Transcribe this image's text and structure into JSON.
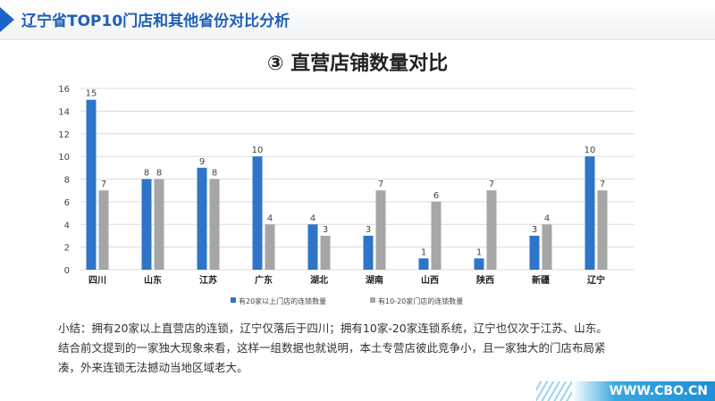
{
  "header": {
    "title": "辽宁省TOP10门店和其他省份对比分析"
  },
  "subtitle": "③ 直营店铺数量对比",
  "chart_data": {
    "type": "bar",
    "categories": [
      "四川",
      "山东",
      "江苏",
      "广东",
      "湖北",
      "湖南",
      "山西",
      "陕西",
      "新疆",
      "辽宁"
    ],
    "series": [
      {
        "name": "有20家以上门店的连锁数量",
        "values": [
          15,
          8,
          9,
          10,
          4,
          3,
          1,
          1,
          3,
          10
        ],
        "color": "#2e75c8"
      },
      {
        "name": "有10-20家门店的连锁数量",
        "values": [
          7,
          8,
          8,
          4,
          3,
          7,
          6,
          7,
          4,
          7
        ],
        "color": "#a6a6a6"
      }
    ],
    "ylim": [
      0,
      16
    ],
    "yticks": [
      0,
      2,
      4,
      6,
      8,
      10,
      12,
      14,
      16
    ],
    "grid": true,
    "legend": "bottom"
  },
  "summary": {
    "line1": "小结：拥有20家以上直营店的连锁，辽宁仅落后于四川；拥有10家-20家连锁系统，辽宁也仅次于江苏、山东。",
    "line2": "结合前文提到的一家独大现象来看，这样一组数据也就说明，本土专营店彼此竞争小，且一家独大的门店布局紧",
    "line3": "凑，外来连锁无法撼动当地区域老大。"
  },
  "watermark": "WWW.CBO.CN"
}
